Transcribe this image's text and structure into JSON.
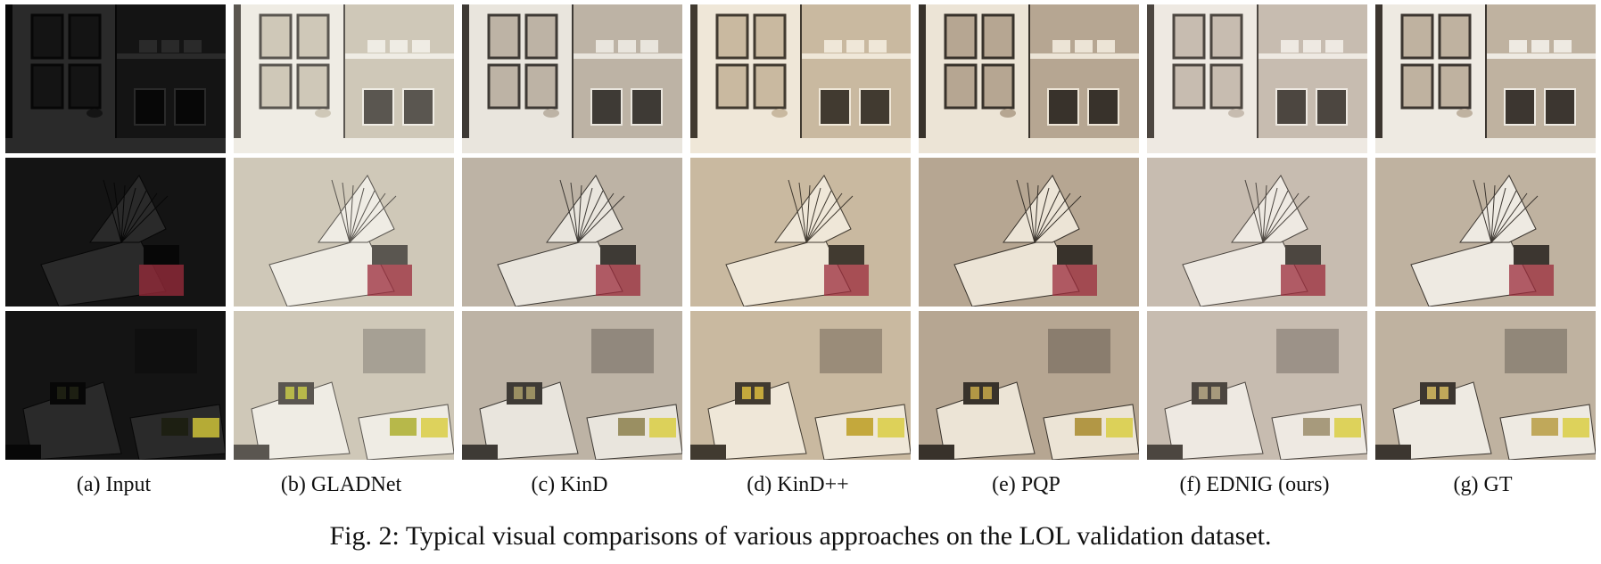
{
  "figure": {
    "columns": [
      {
        "label": "(a) Input"
      },
      {
        "label": "(b) GLADNet"
      },
      {
        "label": "(c) KinD"
      },
      {
        "label": "(d) KinD++"
      },
      {
        "label": "(e) PQP"
      },
      {
        "label": "(f) EDNIG (ours)"
      },
      {
        "label": "(g) GT"
      }
    ],
    "rows": [
      "cabinet-scene",
      "book-scene",
      "lab-desk-scene"
    ],
    "caption": "Fig. 2: Typical visual comparisons of various approaches on the LOL validation dataset."
  }
}
